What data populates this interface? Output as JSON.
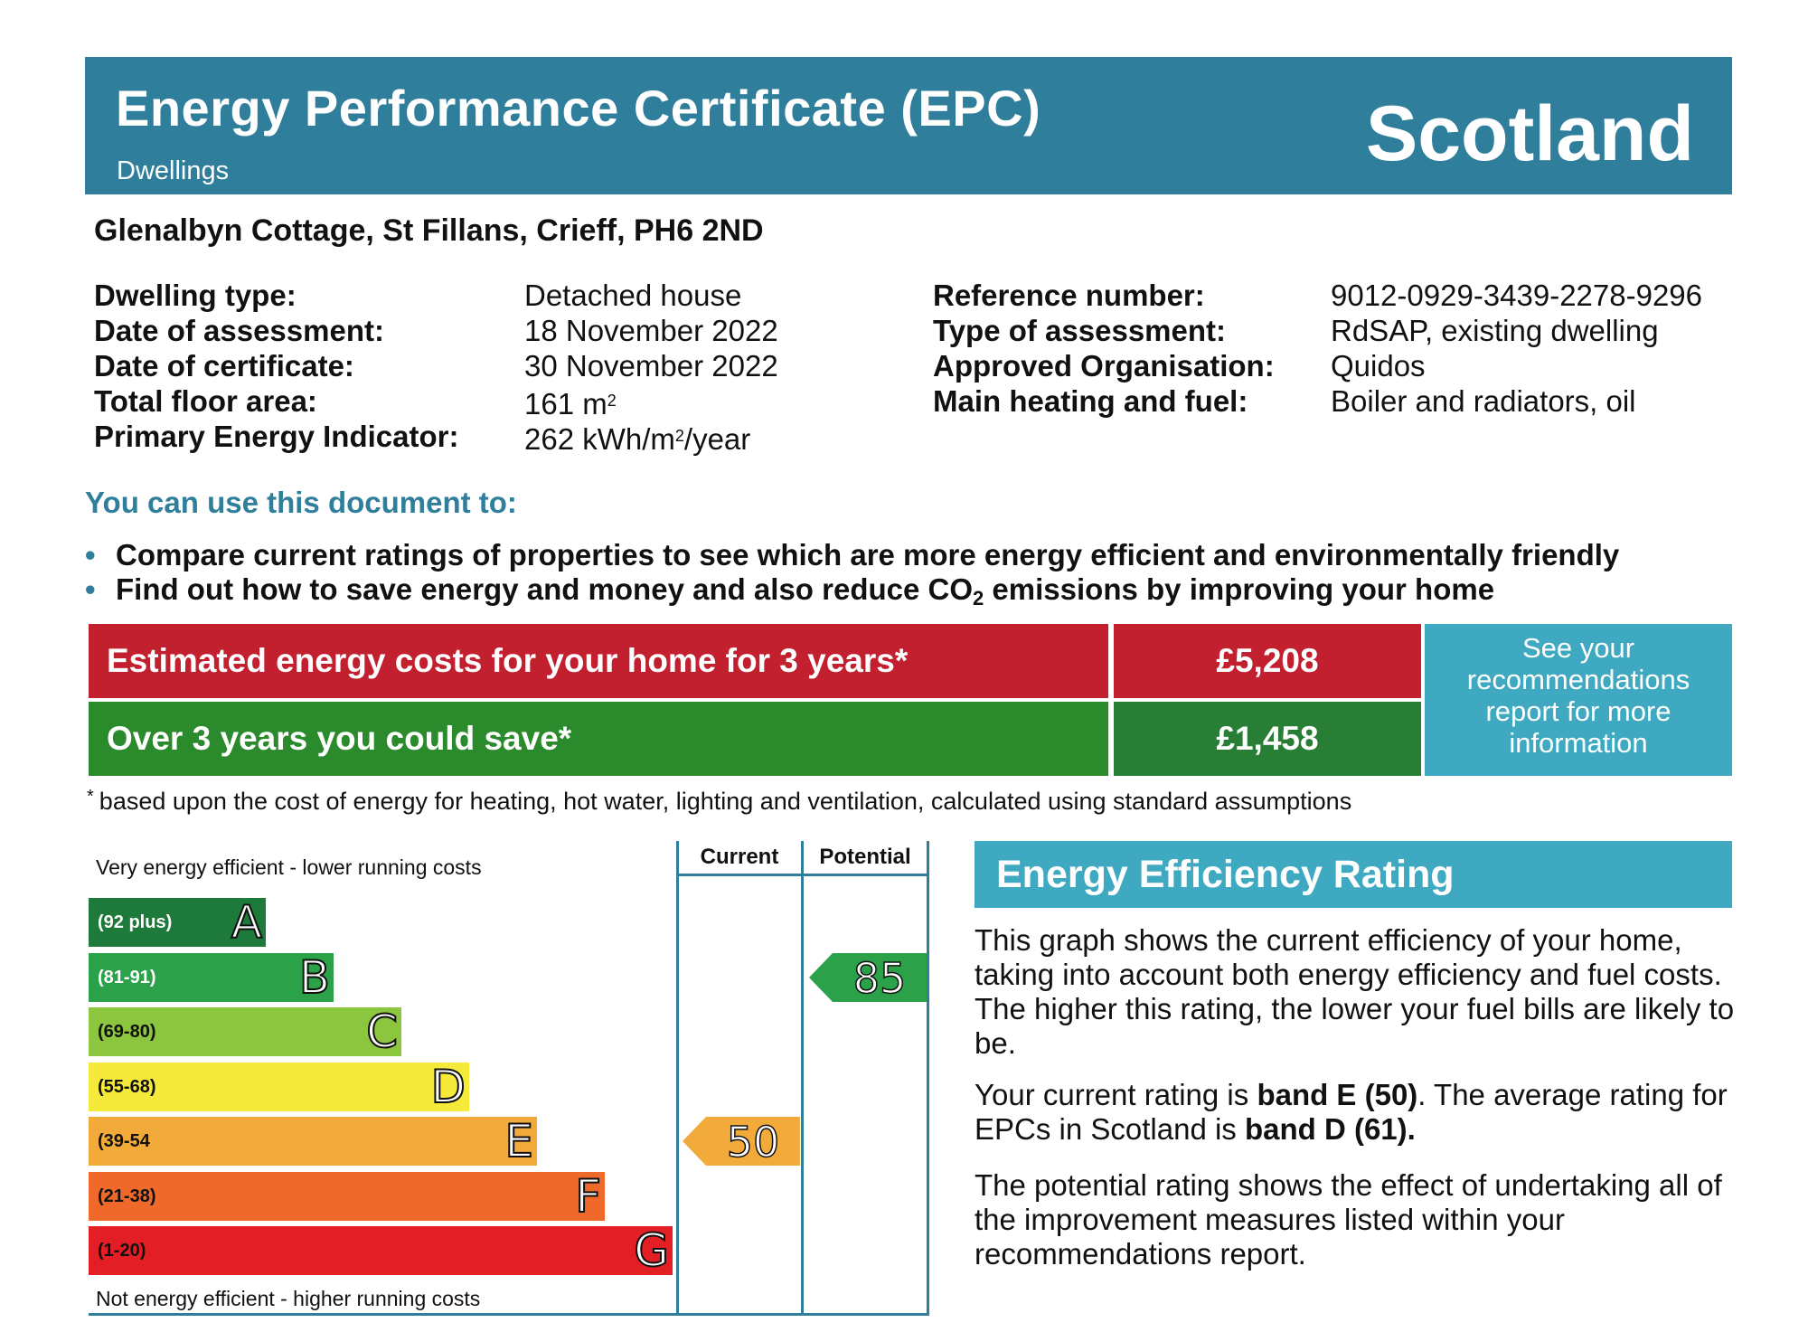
{
  "header": {
    "title": "Energy Performance Certificate (EPC)",
    "subtitle": "Dwellings",
    "region": "Scotland"
  },
  "address": "Glenalbyn Cottage, St Fillans, Crieff, PH6 2ND",
  "details_left": [
    {
      "label": "Dwelling type:",
      "value": "Detached house"
    },
    {
      "label": "Date of assessment:",
      "value": "18 November 2022"
    },
    {
      "label": "Date of certificate:",
      "value": "30 November 2022"
    },
    {
      "label": "Total floor area:",
      "value": "161 m",
      "sup": "2"
    },
    {
      "label": "Primary Energy Indicator:",
      "value": "262 kWh/m",
      "sup": "2",
      "after": "/year"
    }
  ],
  "details_right": [
    {
      "label": "Reference number:",
      "value": "9012-0929-3439-2278-9296"
    },
    {
      "label": "Type of assessment:",
      "value": "RdSAP, existing dwelling"
    },
    {
      "label": "Approved Organisation:",
      "value": "Quidos"
    },
    {
      "label": "Main heating and fuel:",
      "value": "Boiler and radiators, oil"
    }
  ],
  "use": {
    "heading": "You can use this document to:",
    "bullet_char": "•",
    "bullet1": "Compare current ratings of properties to see which are more energy efficient and environmentally friendly",
    "bullet2_a": "Find out how to save energy and money and also reduce CO",
    "bullet2_sub": "2",
    "bullet2_b": " emissions by improving your home"
  },
  "costs": {
    "estimated_label": "Estimated energy costs for your home for 3 years*",
    "estimated_value": "£5,208",
    "save_label": "Over 3 years you could save*",
    "save_value": "£1,458",
    "see_line1": "See your",
    "see_line2": "recommendations",
    "see_line3": "report for more",
    "see_line4": "information",
    "footnote_star": "*",
    "footnote": "based upon the cost of energy for heating, hot water, lighting and ventilation, calculated using standard assumptions"
  },
  "rating_chart": {
    "top_label": "Very energy efficient - lower running costs",
    "bottom_label": "Not energy efficient - higher running costs",
    "current_header": "Current",
    "potential_header": "Potential"
  },
  "chart_data": {
    "type": "bar",
    "bands": [
      {
        "letter": "A",
        "range": "(92 plus)",
        "color": "#1e7a3a"
      },
      {
        "letter": "B",
        "range": "(81-91)",
        "color": "#2ba14a"
      },
      {
        "letter": "C",
        "range": "(69-80)",
        "color": "#8cc63f"
      },
      {
        "letter": "D",
        "range": "(55-68)",
        "color": "#f5ea3a"
      },
      {
        "letter": "E",
        "range": "(39-54",
        "color": "#f2ab3b"
      },
      {
        "letter": "F",
        "range": "(21-38)",
        "color": "#ef6a2a"
      },
      {
        "letter": "G",
        "range": "(1-20)",
        "color": "#e31e24"
      }
    ],
    "current": {
      "value": "50",
      "band": "E",
      "color": "#f2ab3b"
    },
    "potential": {
      "value": "85",
      "band": "B",
      "color": "#2ba14a"
    }
  },
  "eer": {
    "heading": "Energy Efficiency Rating",
    "p1": "This graph shows the current efficiency of your home, taking into account both energy efficiency and fuel costs. The higher this rating, the lower your fuel bills are likely to be.",
    "p2_a": "Your current rating is ",
    "p2_b": "band E (50)",
    "p2_c": ". The average rating for EPCs in Scotland is ",
    "p2_d": "band D (61).",
    "p3": "The potential rating shows the effect of undertaking all of the improvement measures listed within your recommendations report."
  }
}
